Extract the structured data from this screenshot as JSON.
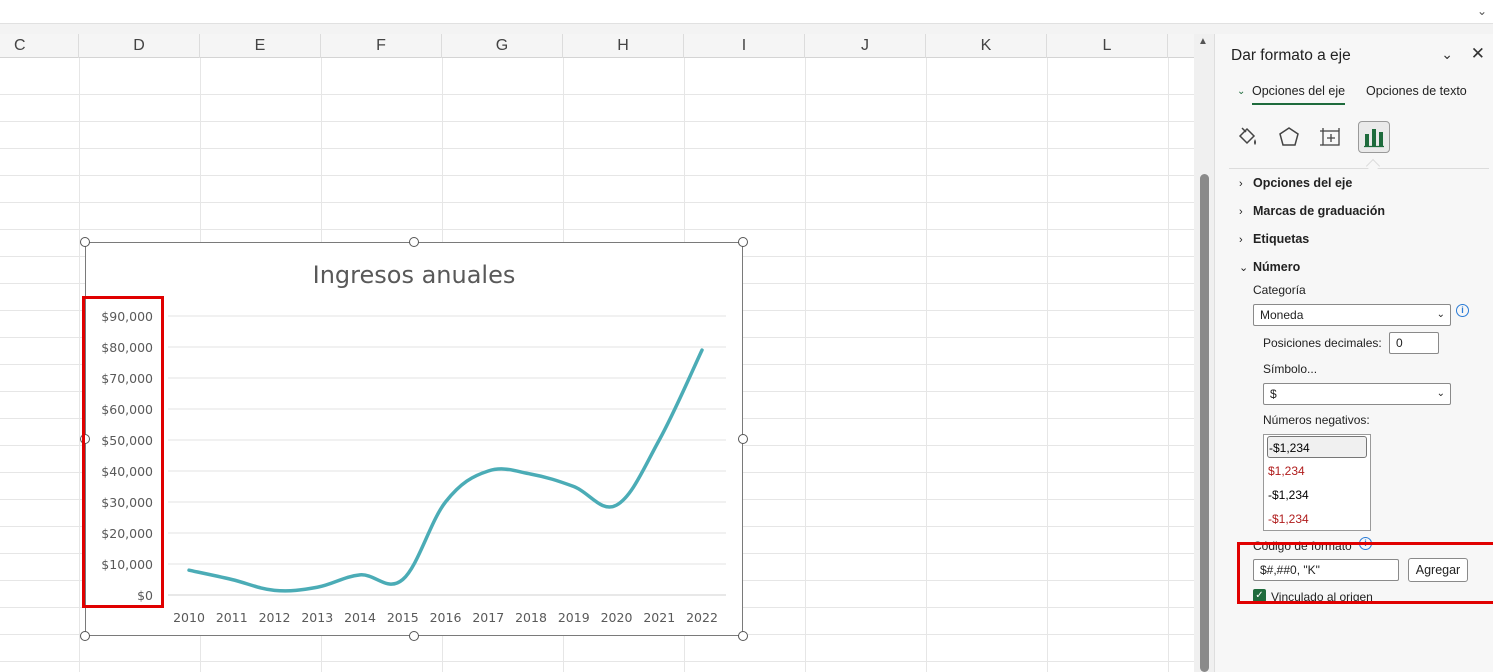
{
  "columns": [
    "C",
    "D",
    "E",
    "F",
    "G",
    "H",
    "I",
    "J",
    "K",
    "L"
  ],
  "chart": {
    "title": "Ingresos anuales"
  },
  "chart_data": {
    "type": "line",
    "title": "Ingresos anuales",
    "categories": [
      "2010",
      "2011",
      "2012",
      "2013",
      "2014",
      "2015",
      "2016",
      "2017",
      "2018",
      "2019",
      "2020",
      "2021",
      "2022"
    ],
    "values": [
      8000,
      5000,
      1500,
      2500,
      6500,
      5000,
      30000,
      40000,
      39000,
      35000,
      29000,
      50000,
      79000
    ],
    "y_ticks": [
      "$0",
      "$10,000",
      "$20,000",
      "$30,000",
      "$40,000",
      "$50,000",
      "$60,000",
      "$70,000",
      "$80,000",
      "$90,000"
    ],
    "ylim": [
      0,
      90000
    ],
    "grid": true,
    "line_color": "#4bacb6",
    "xlabel": "",
    "ylabel": ""
  },
  "pane": {
    "title": "Dar formato a eje",
    "tabs": [
      "Opciones del eje",
      "Opciones de texto"
    ],
    "icons": [
      "fill-line-icon",
      "effects-icon",
      "size-properties-icon",
      "axis-options-icon"
    ],
    "sections": [
      "Opciones del eje",
      "Marcas de graduación",
      "Etiquetas",
      "Número"
    ],
    "categoria_label": "Categoría",
    "categoria_value": "Moneda",
    "decimales_label": "Posiciones decimales:",
    "decimales_value": "0",
    "simbolo_label": "Símbolo...",
    "simbolo_value": "$",
    "negativos_label": "Números negativos:",
    "negativos": [
      {
        "text": "-$1,234",
        "color": "#222222"
      },
      {
        "text": "$1,234",
        "color": "#b01c1c"
      },
      {
        "text": "-$1,234",
        "color": "#222222"
      },
      {
        "text": "-$1,234",
        "color": "#b01c1c"
      }
    ],
    "codigo_label": "Código de formato",
    "codigo_value": "$#,##0, \"K\"",
    "agregar_label": "Agregar",
    "vinculado_label": "Vinculado al origen",
    "accent": "#1e6b3c"
  },
  "highlight_color": "#e00000"
}
